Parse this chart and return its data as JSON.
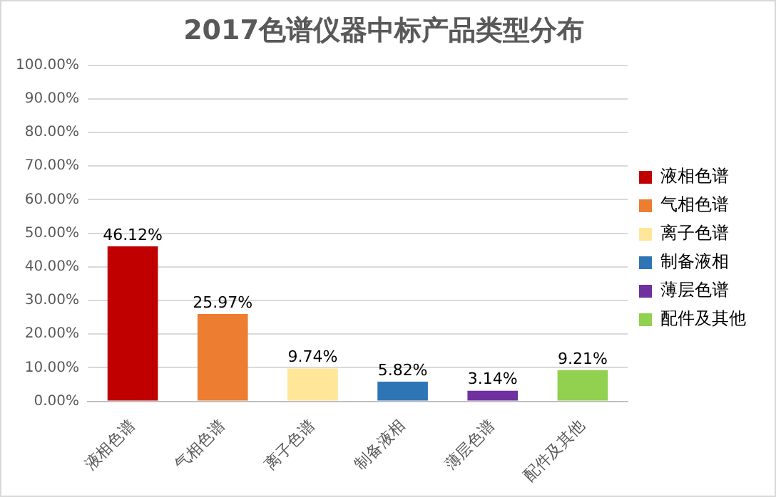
{
  "chart_data": {
    "type": "bar",
    "title": "2017色谱仪器中标产品类型分布",
    "categories": [
      "液相色谱",
      "气相色谱",
      "离子色谱",
      "制备液相",
      "薄层色谱",
      "配件及其他"
    ],
    "series": [
      {
        "name": "液相色谱",
        "color": "#c00000",
        "values": [
          46.12,
          null,
          null,
          null,
          null,
          null
        ],
        "value_labels": [
          "46.12%",
          null,
          null,
          null,
          null,
          null
        ]
      },
      {
        "name": "气相色谱",
        "color": "#ed7d31",
        "values": [
          null,
          25.97,
          null,
          null,
          null,
          null
        ],
        "value_labels": [
          null,
          "25.97%",
          null,
          null,
          null,
          null
        ]
      },
      {
        "name": "离子色谱",
        "color": "#ffe699",
        "values": [
          null,
          null,
          9.74,
          null,
          null,
          null
        ],
        "value_labels": [
          null,
          null,
          "9.74%",
          null,
          null,
          null
        ]
      },
      {
        "name": "制备液相",
        "color": "#2e75b6",
        "values": [
          null,
          null,
          null,
          5.82,
          null,
          null
        ],
        "value_labels": [
          null,
          null,
          null,
          "5.82%",
          null,
          null
        ]
      },
      {
        "name": "薄层色谱",
        "color": "#7030a0",
        "values": [
          null,
          null,
          null,
          null,
          3.14,
          null
        ],
        "value_labels": [
          null,
          null,
          null,
          null,
          "3.14%",
          null
        ]
      },
      {
        "name": "配件及其他",
        "color": "#92d050",
        "values": [
          null,
          null,
          null,
          null,
          null,
          9.21
        ],
        "value_labels": [
          null,
          null,
          null,
          null,
          null,
          "9.21%"
        ]
      }
    ],
    "ylim": [
      0,
      100
    ],
    "yticks": [
      {
        "value": 0,
        "label": "0.00%"
      },
      {
        "value": 10,
        "label": "10.00%"
      },
      {
        "value": 20,
        "label": "20.00%"
      },
      {
        "value": 30,
        "label": "30.00%"
      },
      {
        "value": 40,
        "label": "40.00%"
      },
      {
        "value": 50,
        "label": "50.00%"
      },
      {
        "value": 60,
        "label": "60.00%"
      },
      {
        "value": 70,
        "label": "70.00%"
      },
      {
        "value": 80,
        "label": "80.00%"
      },
      {
        "value": 90,
        "label": "90.00%"
      },
      {
        "value": 100,
        "label": "100.00%"
      }
    ],
    "grid": "y",
    "legend": "right"
  }
}
